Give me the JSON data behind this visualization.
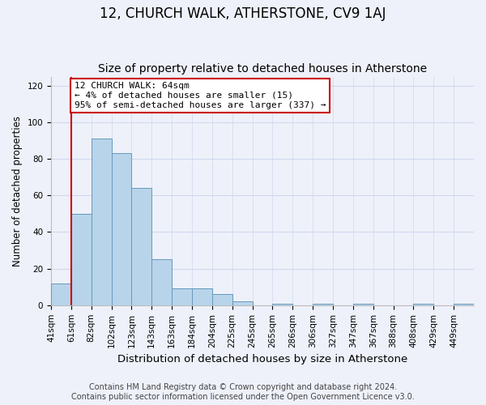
{
  "title": "12, CHURCH WALK, ATHERSTONE, CV9 1AJ",
  "subtitle": "Size of property relative to detached houses in Atherstone",
  "xlabel": "Distribution of detached houses by size in Atherstone",
  "ylabel": "Number of detached properties",
  "bin_labels": [
    "41sqm",
    "61sqm",
    "82sqm",
    "102sqm",
    "123sqm",
    "143sqm",
    "163sqm",
    "184sqm",
    "204sqm",
    "225sqm",
    "245sqm",
    "265sqm",
    "286sqm",
    "306sqm",
    "327sqm",
    "347sqm",
    "367sqm",
    "388sqm",
    "408sqm",
    "429sqm",
    "449sqm"
  ],
  "bar_values": [
    12,
    50,
    91,
    83,
    64,
    25,
    9,
    9,
    6,
    2,
    0,
    1,
    0,
    1,
    0,
    1,
    0,
    0,
    1,
    0,
    1
  ],
  "bar_color": "#b8d4ea",
  "bar_edge_color": "#6699bb",
  "property_line_x": 1,
  "property_line_color": "#cc0000",
  "annotation_text": "12 CHURCH WALK: 64sqm\n← 4% of detached houses are smaller (15)\n95% of semi-detached houses are larger (337) →",
  "annotation_box_color": "#ffffff",
  "annotation_box_edge_color": "#cc0000",
  "ylim": [
    0,
    125
  ],
  "yticks": [
    0,
    20,
    40,
    60,
    80,
    100,
    120
  ],
  "footer_text": "Contains HM Land Registry data © Crown copyright and database right 2024.\nContains public sector information licensed under the Open Government Licence v3.0.",
  "background_color": "#eef1fa",
  "plot_background_color": "#eef1fa",
  "grid_color": "#d0d8ee",
  "title_fontsize": 12,
  "subtitle_fontsize": 10,
  "xlabel_fontsize": 9.5,
  "ylabel_fontsize": 8.5,
  "tick_fontsize": 7.5,
  "annotation_fontsize": 8,
  "footer_fontsize": 7
}
